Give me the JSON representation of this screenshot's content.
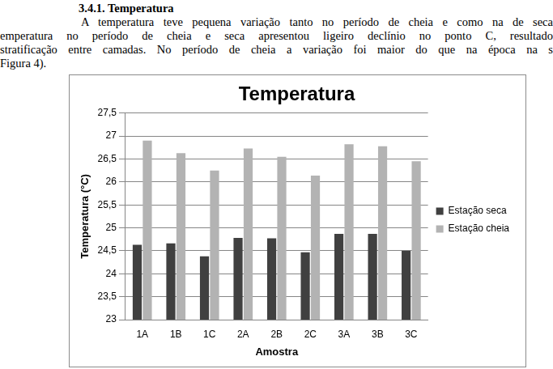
{
  "heading": "3.4.1. Temperatura",
  "paragraph_lines": [
    "A temperatura teve pequena variação tanto no período de cheia e como na de seca",
    "emperatura no período de cheia e seca apresentou ligeiro declínio no ponto C, resultado",
    "stratificação entre camadas. No período de cheia a variação foi maior do que na época na s",
    "Figura 4)."
  ],
  "chart_data": {
    "type": "bar",
    "title": "Temperatura",
    "x_label": "Amostra",
    "y_label": "Temperatura (°C)",
    "categories": [
      "1A",
      "1B",
      "1C",
      "2A",
      "2B",
      "2C",
      "3A",
      "3B",
      "3C"
    ],
    "series": [
      {
        "name": "Estação seca",
        "color": "#404040",
        "values": [
          24.63,
          24.66,
          24.38,
          24.78,
          24.77,
          24.47,
          24.87,
          24.87,
          24.5
        ]
      },
      {
        "name": "Estação cheia",
        "color": "#b3b3b3",
        "values": [
          26.9,
          26.63,
          26.25,
          26.73,
          26.55,
          26.14,
          26.82,
          26.78,
          26.45
        ]
      }
    ],
    "ylim": [
      23,
      27.5
    ],
    "yticks": [
      23,
      {
        "value": 23.5,
        "label": "23,5"
      },
      24,
      {
        "value": 24.5,
        "label": "24,5"
      },
      25,
      {
        "value": 25.5,
        "label": "25,5"
      },
      26,
      {
        "value": 26.5,
        "label": "26,5"
      },
      27,
      {
        "value": 27.5,
        "label": "27,5"
      }
    ],
    "grid": true,
    "legend": "right"
  }
}
